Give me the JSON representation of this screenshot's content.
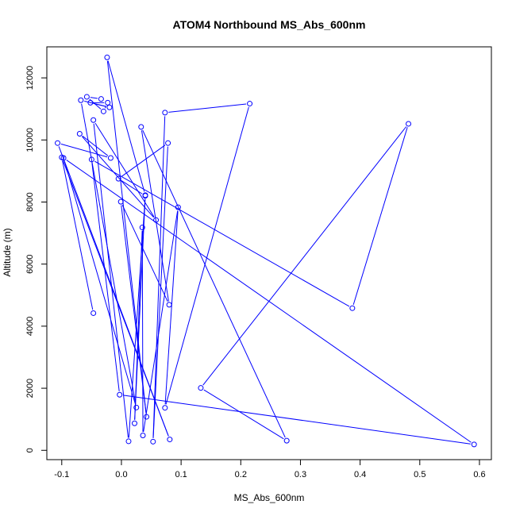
{
  "chart_data": {
    "type": "line",
    "title": "ATOM4 Northbound MS_Abs_600nm",
    "xlabel": "MS_Abs_600nm",
    "ylabel": "Altitude (m)",
    "xlim": [
      -0.125,
      0.62
    ],
    "ylim": [
      -300,
      13000
    ],
    "x_ticks": [
      -0.1,
      0.0,
      0.1,
      0.2,
      0.3,
      0.4,
      0.5,
      0.6
    ],
    "x_tick_labels": [
      "-0.1",
      "0.0",
      "0.1",
      "0.2",
      "0.3",
      "0.4",
      "0.5",
      "0.6"
    ],
    "y_ticks": [
      0,
      2000,
      4000,
      6000,
      8000,
      10000,
      12000
    ],
    "y_tick_labels": [
      "0",
      "2000",
      "4000",
      "6000",
      "8000",
      "10000",
      "12000"
    ],
    "grid": false,
    "series": [
      {
        "color": "#0000ff",
        "style": "line-with-open-circles",
        "points": [
          {
            "x": -0.047,
            "y": 4420
          },
          {
            "x": -0.1,
            "y": 9440
          },
          {
            "x": 0.081,
            "y": 350
          },
          {
            "x": -0.107,
            "y": 9900
          },
          {
            "x": -0.018,
            "y": 9420
          },
          {
            "x": -0.07,
            "y": 10200
          },
          {
            "x": 0.058,
            "y": 7420
          },
          {
            "x": -0.047,
            "y": 10640
          },
          {
            "x": 0.012,
            "y": 290
          },
          {
            "x": 0.04,
            "y": 8200
          },
          {
            "x": -0.005,
            "y": 8750
          },
          {
            "x": 0.078,
            "y": 9900
          },
          {
            "x": 0.053,
            "y": 280
          },
          {
            "x": 0.073,
            "y": 10880
          },
          {
            "x": 0.215,
            "y": 11170
          },
          {
            "x": 0.073,
            "y": 1370
          },
          {
            "x": 0.095,
            "y": 7830
          },
          {
            "x": 0.036,
            "y": 480
          },
          {
            "x": 0.035,
            "y": 7180
          },
          {
            "x": 0.022,
            "y": 870
          },
          {
            "x": 0.04,
            "y": 8220
          },
          {
            "x": -0.024,
            "y": 12660
          },
          {
            "x": 0.042,
            "y": 1080
          },
          {
            "x": -0.001,
            "y": 8010
          },
          {
            "x": 0.08,
            "y": 4690
          },
          {
            "x": 0.033,
            "y": 10420
          },
          {
            "x": 0.277,
            "y": 310
          },
          {
            "x": 0.133,
            "y": 2010
          },
          {
            "x": 0.481,
            "y": 10520
          },
          {
            "x": 0.387,
            "y": 4580
          },
          {
            "x": -0.05,
            "y": 9370
          },
          {
            "x": -0.003,
            "y": 1790
          },
          {
            "x": 0.591,
            "y": 190
          },
          {
            "x": -0.097,
            "y": 9420
          },
          {
            "x": 0.025,
            "y": 1380
          },
          {
            "x": -0.068,
            "y": 11280
          },
          {
            "x": -0.02,
            "y": 11050
          },
          {
            "x": -0.052,
            "y": 11200
          },
          {
            "x": -0.023,
            "y": 11200
          },
          {
            "x": -0.03,
            "y": 10920
          },
          {
            "x": -0.058,
            "y": 11390
          },
          {
            "x": -0.034,
            "y": 11320
          }
        ]
      }
    ]
  }
}
